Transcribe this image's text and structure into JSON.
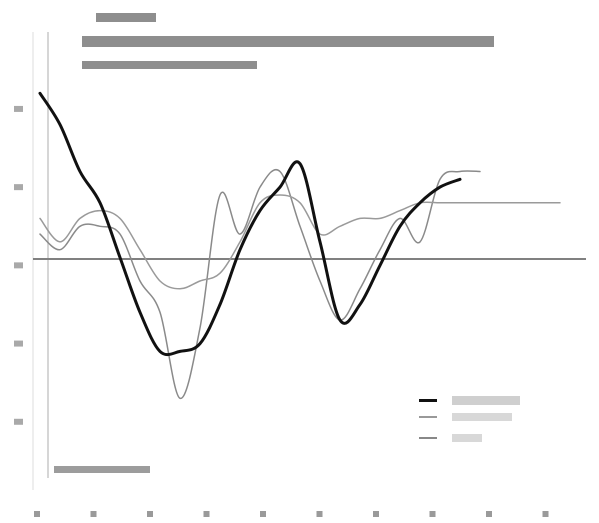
{
  "chart_data": {
    "type": "line",
    "title": "",
    "subtitle": "",
    "xlabel": "",
    "ylabel": "",
    "x": [
      0,
      1,
      2,
      3,
      4,
      5,
      6,
      7,
      8,
      9,
      10,
      11,
      12,
      13,
      14,
      15,
      16,
      17,
      18,
      19,
      20,
      21,
      22,
      23,
      24,
      25,
      26
    ],
    "xlim": [
      0,
      26
    ],
    "ylim": [
      -30,
      26
    ],
    "zero_line": true,
    "grid": false,
    "legend_position": "lower-right",
    "series": [
      {
        "name": "",
        "color": "#111111",
        "width": 3,
        "values": [
          22,
          18,
          12,
          8,
          1,
          -6,
          -11,
          -11,
          -10,
          -5,
          2,
          7,
          10,
          13,
          3,
          -7,
          -5,
          0,
          5,
          8,
          10,
          11,
          null,
          null,
          null,
          null,
          null
        ]
      },
      {
        "name": "",
        "color": "#9a9a9a",
        "width": 1.5,
        "values": [
          6,
          3,
          6,
          7,
          6,
          2,
          -2,
          -3,
          -2,
          -1,
          3,
          8,
          9,
          8,
          4,
          5,
          6,
          6,
          7,
          8,
          8,
          8,
          8,
          8,
          8,
          8,
          8
        ]
      },
      {
        "name": "",
        "color": "#8a8a8a",
        "width": 1.5,
        "values": [
          4,
          2,
          5,
          5,
          4,
          -2,
          -6,
          -17,
          -8,
          9,
          4,
          10,
          12,
          5,
          -2,
          -7,
          -3,
          2,
          6,
          3,
          11,
          12,
          12,
          null,
          null,
          null,
          null
        ]
      }
    ]
  }
}
